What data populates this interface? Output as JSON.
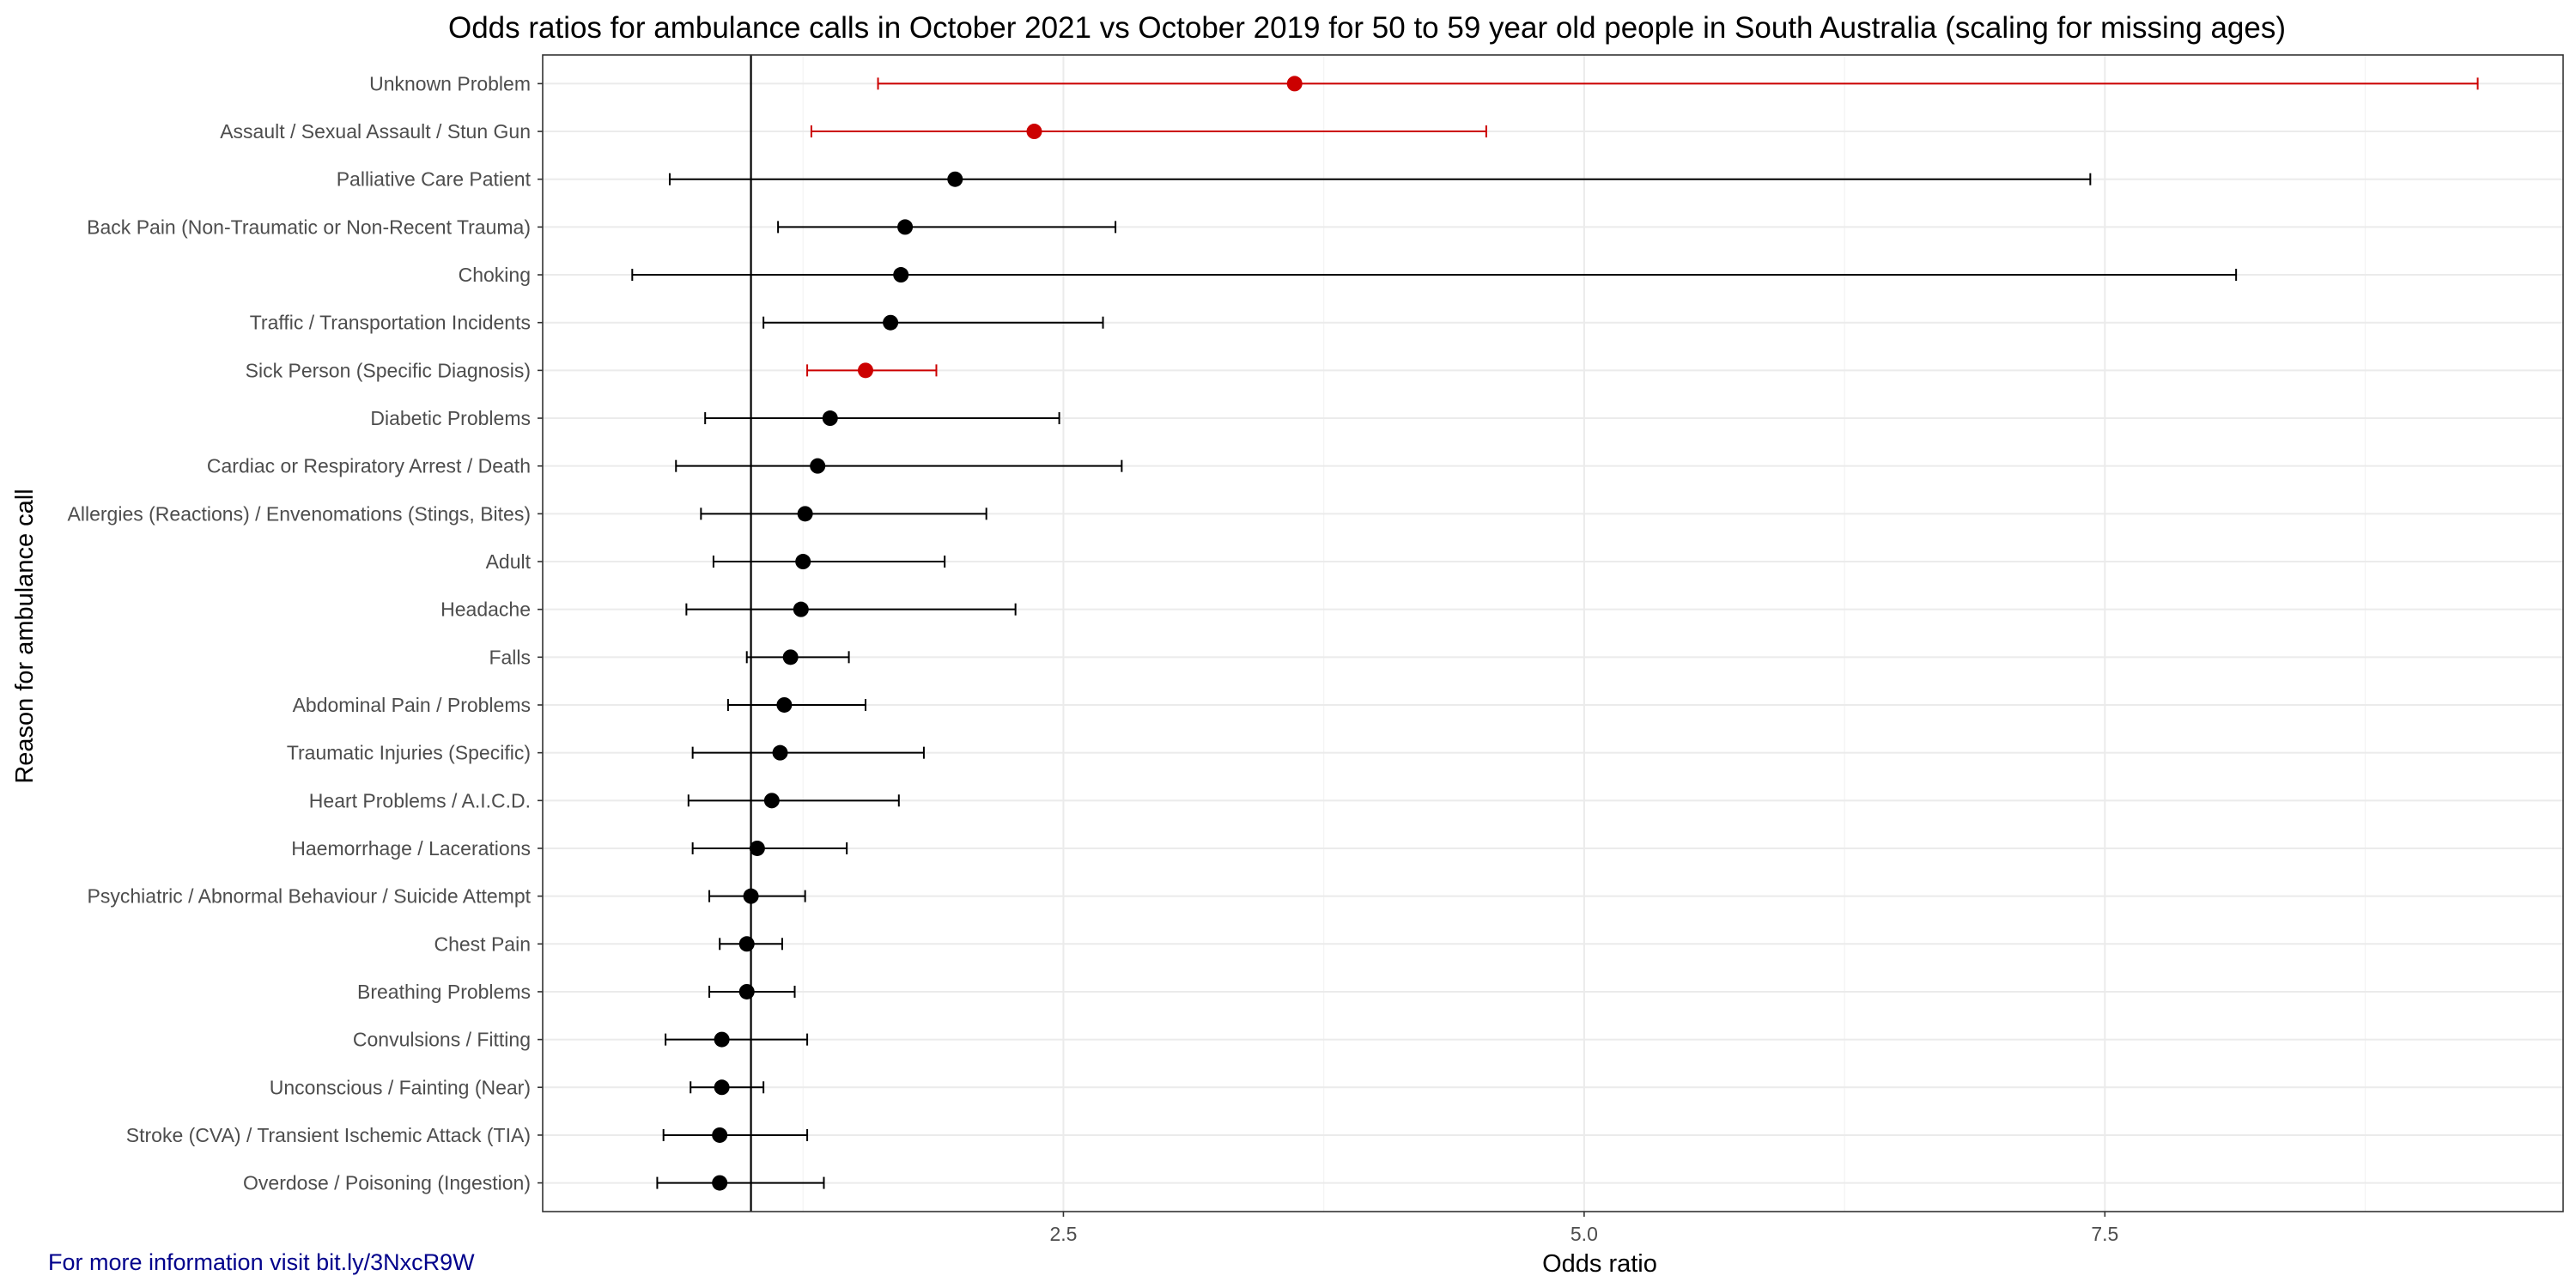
{
  "chart_data": {
    "type": "scatter",
    "title": "Odds ratios for ambulance calls in October 2021 vs October 2019 for 50 to 59 year old people in South Australia (scaling for missing ages)",
    "xlabel": "Odds ratio",
    "ylabel": "Reason for ambulance call",
    "xlim": [
      0,
      9.7
    ],
    "x_ticks": [
      2.5,
      5.0,
      7.5
    ],
    "x_tick_labels": [
      "2.5",
      "5.0",
      "7.5"
    ],
    "reference_line": 1,
    "grid": true,
    "colors": {
      "significant": "#cc0000",
      "not_significant": "#000000"
    },
    "categories": [
      {
        "label": "Unknown Problem",
        "or": 3.61,
        "lo": 1.61,
        "hi": 9.29,
        "significant": true
      },
      {
        "label": "Assault / Sexual Assault / Stun Gun",
        "or": 2.36,
        "lo": 1.29,
        "hi": 4.53,
        "significant": true
      },
      {
        "label": "Palliative Care Patient",
        "or": 1.98,
        "lo": 0.61,
        "hi": 7.43,
        "significant": false
      },
      {
        "label": "Back Pain (Non-Traumatic or Non-Recent Trauma)",
        "or": 1.74,
        "lo": 1.13,
        "hi": 2.75,
        "significant": false
      },
      {
        "label": "Choking",
        "or": 1.72,
        "lo": 0.43,
        "hi": 8.13,
        "significant": false
      },
      {
        "label": "Traffic / Transportation Incidents",
        "or": 1.67,
        "lo": 1.06,
        "hi": 2.69,
        "significant": false
      },
      {
        "label": "Sick Person (Specific Diagnosis)",
        "or": 1.55,
        "lo": 1.27,
        "hi": 1.89,
        "significant": true
      },
      {
        "label": "Diabetic Problems",
        "or": 1.38,
        "lo": 0.78,
        "hi": 2.48,
        "significant": false
      },
      {
        "label": "Cardiac or Respiratory Arrest / Death",
        "or": 1.32,
        "lo": 0.64,
        "hi": 2.78,
        "significant": false
      },
      {
        "label": "Allergies (Reactions) / Envenomations (Stings, Bites)",
        "or": 1.26,
        "lo": 0.76,
        "hi": 2.13,
        "significant": false
      },
      {
        "label": "Adult",
        "or": 1.25,
        "lo": 0.82,
        "hi": 1.93,
        "significant": false
      },
      {
        "label": "Headache",
        "or": 1.24,
        "lo": 0.69,
        "hi": 2.27,
        "significant": false
      },
      {
        "label": "Falls",
        "or": 1.19,
        "lo": 0.98,
        "hi": 1.47,
        "significant": false
      },
      {
        "label": "Abdominal Pain / Problems",
        "or": 1.16,
        "lo": 0.89,
        "hi": 1.55,
        "significant": false
      },
      {
        "label": "Traumatic Injuries (Specific)",
        "or": 1.14,
        "lo": 0.72,
        "hi": 1.83,
        "significant": false
      },
      {
        "label": "Heart Problems / A.I.C.D.",
        "or": 1.1,
        "lo": 0.7,
        "hi": 1.71,
        "significant": false
      },
      {
        "label": "Haemorrhage / Lacerations",
        "or": 1.03,
        "lo": 0.72,
        "hi": 1.46,
        "significant": false
      },
      {
        "label": "Psychiatric / Abnormal Behaviour / Suicide Attempt",
        "or": 1.0,
        "lo": 0.8,
        "hi": 1.26,
        "significant": false
      },
      {
        "label": "Chest Pain",
        "or": 0.98,
        "lo": 0.85,
        "hi": 1.15,
        "significant": false
      },
      {
        "label": "Breathing Problems",
        "or": 0.98,
        "lo": 0.8,
        "hi": 1.21,
        "significant": false
      },
      {
        "label": "Convulsions / Fitting",
        "or": 0.86,
        "lo": 0.59,
        "hi": 1.27,
        "significant": false
      },
      {
        "label": "Unconscious / Fainting (Near)",
        "or": 0.86,
        "lo": 0.71,
        "hi": 1.06,
        "significant": false
      },
      {
        "label": "Stroke (CVA) / Transient Ischemic Attack (TIA)",
        "or": 0.85,
        "lo": 0.58,
        "hi": 1.27,
        "significant": false
      },
      {
        "label": "Overdose / Poisoning (Ingestion)",
        "or": 0.85,
        "lo": 0.55,
        "hi": 1.35,
        "significant": false
      }
    ]
  },
  "footnote": "For more information visit bit.ly/3NxcR9W"
}
